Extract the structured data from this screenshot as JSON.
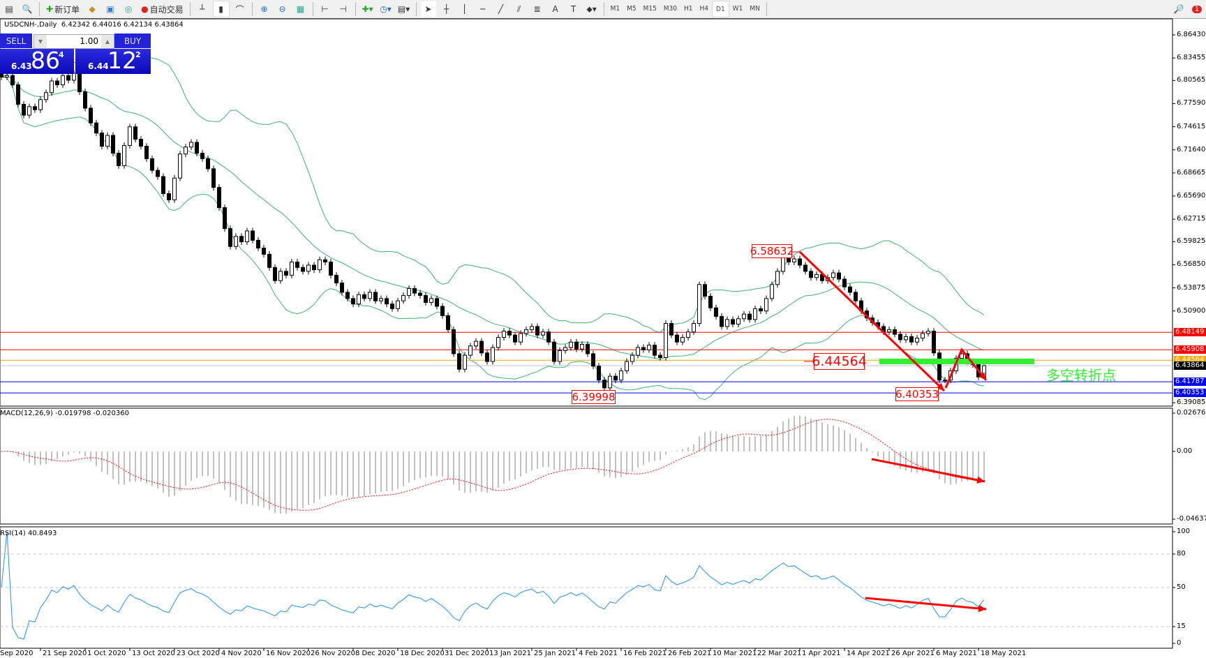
{
  "toolbar": {
    "new_order": "新订单",
    "auto_trading": "自动交易",
    "timeframes": [
      "M1",
      "M5",
      "M15",
      "M30",
      "H1",
      "H4",
      "D1",
      "W1",
      "MN"
    ],
    "active_timeframe": "D1",
    "notification_count": "1"
  },
  "chart": {
    "symbol_header": "USDCNH-,Daily",
    "ohlc_header": "6.42342 6.44016 6.42134 6.43864"
  },
  "trade_panel": {
    "sell_label": "SELL",
    "buy_label": "BUY",
    "lot": "1.00",
    "sell_big": "6.43",
    "sell_pips": "86",
    "sell_frac": "4",
    "buy_big": "6.44",
    "buy_pips": "12",
    "buy_frac": "2"
  },
  "price_axis": [
    "6.86430",
    "6.83455",
    "6.80565",
    "6.77590",
    "6.74615",
    "6.71640",
    "6.68665",
    "6.65690",
    "6.62715",
    "6.59825",
    "6.56850",
    "6.53875",
    "6.50900",
    "6.39085"
  ],
  "price_lines": [
    {
      "label": "6.48149",
      "color": "#ff0000"
    },
    {
      "label": "6.45908",
      "color": "#ff0000"
    },
    {
      "label": "6.44564",
      "color": "#ffa500"
    },
    {
      "label": "6.43864",
      "color": "#000000",
      "line": "#c0c0c0"
    },
    {
      "label": "6.41787",
      "color": "#0000ff"
    },
    {
      "label": "6.40353",
      "color": "#0000ff"
    }
  ],
  "annotations": {
    "high": "6.58632",
    "low_feb": "6.39998",
    "low_may": "6.40353",
    "pivot": "6.44564",
    "pivot_text": "多空转折点"
  },
  "macd": {
    "label": "MACD(12,26,9) -0.019798 -0.020360",
    "axis": [
      "0.02676",
      "0.00",
      "-0.046374"
    ]
  },
  "rsi": {
    "label": "RSI(14) 40.8493",
    "axis": [
      "100",
      "80",
      "50",
      "15",
      "0"
    ]
  },
  "date_axis": [
    "Sep 2020",
    "21 Sep 2020",
    "1 Oct 2020",
    "13 Oct 2020",
    "23 Oct 2020",
    "4 Nov 2020",
    "16 Nov 2020",
    "26 Nov 2020",
    "8 Dec 2020",
    "18 Dec 2020",
    "31 Dec 2020",
    "13 Jan 2021",
    "25 Jan 2021",
    "4 Feb 2021",
    "16 Feb 2021",
    "26 Feb 2021",
    "10 Mar 2021",
    "22 Mar 2021",
    "1 Apr 2021",
    "14 Apr 2021",
    "26 Apr 2021",
    "6 May 2021",
    "18 May 2021"
  ],
  "colors": {
    "bands": "#3cb371",
    "macd_hist": "#c0c0c0",
    "macd_signal": "#ff0000",
    "rsi": "#1e90ff",
    "arrow": "#ff0000",
    "pivot_bar": "#33ee33"
  },
  "chart_data": {
    "type": "candlestick",
    "symbol": "USDCNH-",
    "timeframe": "Daily",
    "ylim": [
      6.39085,
      6.8643
    ],
    "indicators": [
      "Bollinger Bands(20,2)",
      "MACD(12,26,9)",
      "RSI(14)"
    ],
    "rsi_levels": [
      80,
      50,
      15
    ],
    "first_open": 6.815,
    "closes": [
      6.81,
      6.812,
      6.8,
      6.775,
      6.761,
      6.772,
      6.768,
      6.781,
      6.79,
      6.805,
      6.8,
      6.812,
      6.806,
      6.815,
      6.791,
      6.77,
      6.751,
      6.738,
      6.721,
      6.735,
      6.712,
      6.696,
      6.722,
      6.746,
      6.73,
      6.721,
      6.705,
      6.69,
      6.682,
      6.66,
      6.652,
      6.68,
      6.711,
      6.72,
      6.726,
      6.712,
      6.705,
      6.692,
      6.668,
      6.642,
      6.615,
      6.592,
      6.605,
      6.598,
      6.612,
      6.6,
      6.59,
      6.582,
      6.565,
      6.548,
      6.56,
      6.555,
      6.572,
      6.565,
      6.56,
      6.568,
      6.562,
      6.575,
      6.572,
      6.555,
      6.545,
      6.533,
      6.525,
      6.518,
      6.53,
      6.525,
      6.533,
      6.522,
      6.525,
      6.518,
      6.512,
      6.522,
      6.529,
      6.538,
      6.532,
      6.529,
      6.52,
      6.525,
      6.515,
      6.503,
      6.485,
      6.454,
      6.434,
      6.452,
      6.464,
      6.47,
      6.455,
      6.444,
      6.462,
      6.475,
      6.483,
      6.478,
      6.469,
      6.48,
      6.485,
      6.489,
      6.478,
      6.482,
      6.469,
      6.444,
      6.458,
      6.462,
      6.469,
      6.46,
      6.466,
      6.454,
      6.438,
      6.42,
      6.41,
      6.425,
      6.42,
      6.432,
      6.444,
      6.452,
      6.462,
      6.459,
      6.465,
      6.452,
      6.449,
      6.493,
      6.478,
      6.469,
      6.475,
      6.482,
      6.493,
      6.543,
      6.528,
      6.513,
      6.502,
      6.489,
      6.498,
      6.492,
      6.499,
      6.505,
      6.498,
      6.512,
      6.509,
      6.525,
      6.543,
      6.56,
      6.58,
      6.572,
      6.576,
      6.568,
      6.56,
      6.552,
      6.556,
      6.548,
      6.552,
      6.558,
      6.55,
      6.54,
      6.533,
      6.522,
      6.509,
      6.5,
      6.494,
      6.489,
      6.482,
      6.485,
      6.479,
      6.472,
      6.476,
      6.469,
      6.474,
      6.48,
      6.483,
      6.455,
      6.42,
      6.42,
      6.432,
      6.448,
      6.454,
      6.444,
      6.44,
      6.424,
      6.43864
    ],
    "last_bar": {
      "open": 6.42342,
      "high": 6.44016,
      "low": 6.42134,
      "close": 6.43864
    },
    "marked_high": 6.58632,
    "marked_lows": [
      6.39998,
      6.40353
    ],
    "horizontal_levels": [
      6.48149,
      6.45908,
      6.44564,
      6.41787,
      6.40353
    ]
  }
}
